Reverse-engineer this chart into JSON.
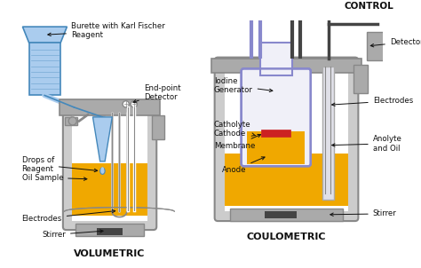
{
  "bg_color": "#ffffff",
  "title_vol": "VOLUMETRIC",
  "title_coul": "COULOMETRIC",
  "label_burette": "Burette with Karl Fischer\nReagent",
  "label_endpoint": "End-point\nDetector",
  "label_drops": "Drops of\nReagent",
  "label_oil": "Oil Sample",
  "label_electrodes_v": "Electrodes",
  "label_stirrer_v": "Stirrer",
  "label_control": "CONTROL",
  "label_detector": "Detector",
  "label_iodine": "Iodine\nGenerator",
  "label_catholyte": "Catholyte\nCathode",
  "label_membrane": "Membrane",
  "label_anode": "Anode",
  "label_electrodes_c": "Electrodes",
  "label_anolyte": "Anolyte\nand Oil",
  "label_stirrer_c": "Stirrer",
  "gold_color": "#F0A800",
  "blue_color": "#4488BB",
  "light_blue": "#88BBDD",
  "sky_blue": "#AACCEE",
  "gray_color": "#888888",
  "dark_gray": "#444444",
  "silver": "#AAAAAA",
  "silver_light": "#CCCCCC",
  "purple": "#8888CC",
  "purple_light": "#BBBBDD",
  "red_color": "#CC2222",
  "white": "#FFFFFF",
  "black": "#111111",
  "vessel_bg": "#E8E8E8"
}
